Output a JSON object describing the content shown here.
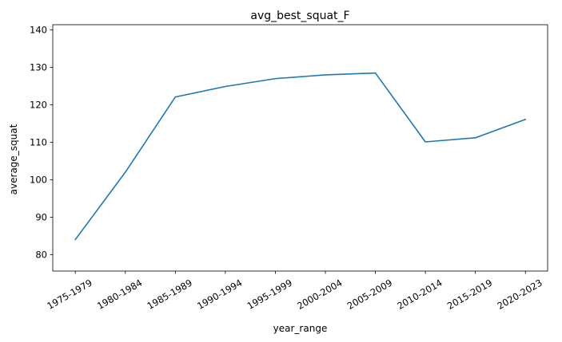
{
  "chart_data": {
    "type": "line",
    "title": "avg_best_squat_F",
    "xlabel": "year_range",
    "ylabel": "average_squat",
    "categories": [
      "1975-1979",
      "1980-1984",
      "1985-1989",
      "1990-1994",
      "1995-1999",
      "2000-2004",
      "2005-2009",
      "2010-2014",
      "2015-2019",
      "2020-2023"
    ],
    "series": [
      {
        "name": "average_squat",
        "values": [
          84.0,
          102.0,
          122.1,
          124.9,
          127.0,
          128.0,
          128.5,
          110.1,
          111.2,
          116.1
        ]
      }
    ],
    "ylim": [
      75.6,
      141.4
    ],
    "yticks": [
      80,
      90,
      100,
      110,
      120,
      130,
      140
    ],
    "grid": false,
    "line_color": "#1f77b4"
  }
}
